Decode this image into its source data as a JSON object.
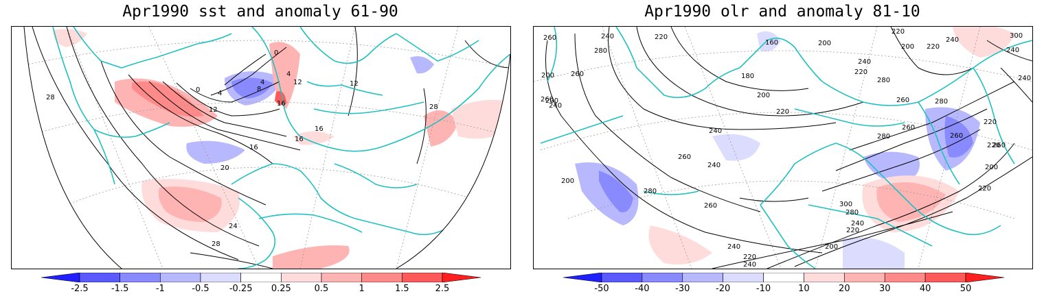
{
  "panels": [
    {
      "title": "Apr1990 sst and anomaly 61-90",
      "contour_labels": [
        "28",
        "0",
        "4",
        "4",
        "8",
        "12",
        "16",
        "16",
        "16",
        "20",
        "24",
        "28",
        "0",
        "12",
        "28",
        "4",
        "12",
        "16"
      ],
      "colorbar": {
        "ticks": [
          "-2.5",
          "-1.5",
          "-1",
          "-0.5",
          "-0.25",
          "0.25",
          "0.5",
          "1",
          "1.5",
          "2.5"
        ],
        "colors": [
          "#1f1fff",
          "#5a5aff",
          "#8a8aff",
          "#b8b8ff",
          "#dcdcff",
          "#ffffff",
          "#ffdcdc",
          "#ffb4b4",
          "#ff8a8a",
          "#ff5a5a",
          "#ff1f1f"
        ]
      }
    },
    {
      "title": "Apr1990 olr and anomaly 81-10",
      "contour_labels": [
        "240",
        "220",
        "160",
        "200",
        "220",
        "200",
        "220",
        "240",
        "300",
        "240",
        "280",
        "260",
        "180",
        "200",
        "220",
        "240",
        "220",
        "240",
        "280",
        "260",
        "280",
        "260",
        "200",
        "200",
        "260",
        "240",
        "280",
        "260",
        "260",
        "260",
        "200",
        "300",
        "280",
        "240",
        "220",
        "240",
        "220",
        "240",
        "220",
        "200",
        "260",
        "240",
        "260",
        "280",
        "220",
        "220",
        "200",
        "240"
      ],
      "colorbar": {
        "ticks": [
          "-50",
          "-40",
          "-30",
          "-20",
          "-10",
          "10",
          "20",
          "30",
          "40",
          "50"
        ],
        "colors": [
          "#1f1fff",
          "#5a5aff",
          "#8a8aff",
          "#b8b8ff",
          "#dcdcff",
          "#ffffff",
          "#ffdcdc",
          "#ffb4b4",
          "#ff8a8a",
          "#ff5a5a",
          "#ff1f1f"
        ]
      }
    }
  ],
  "map": {
    "coastline_color": "#20c0c0",
    "contour_color": "#000000",
    "graticule_color": "#999999"
  }
}
